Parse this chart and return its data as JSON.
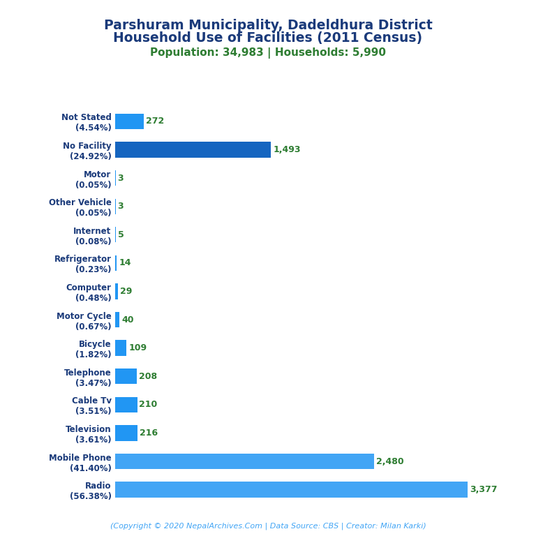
{
  "title_line1": "Parshuram Municipality, Dadeldhura District",
  "title_line2": "Household Use of Facilities (2011 Census)",
  "subtitle": "Population: 34,983 | Households: 5,990",
  "title_color": "#1a3a7a",
  "subtitle_color": "#2e7d32",
  "categories": [
    "Not Stated\n(4.54%)",
    "No Facility\n(24.92%)",
    "Motor\n(0.05%)",
    "Other Vehicle\n(0.05%)",
    "Internet\n(0.08%)",
    "Refrigerator\n(0.23%)",
    "Computer\n(0.48%)",
    "Motor Cycle\n(0.67%)",
    "Bicycle\n(1.82%)",
    "Telephone\n(3.47%)",
    "Cable Tv\n(3.51%)",
    "Television\n(3.61%)",
    "Mobile Phone\n(41.40%)",
    "Radio\n(56.38%)"
  ],
  "values": [
    272,
    1493,
    3,
    3,
    5,
    14,
    29,
    40,
    109,
    208,
    210,
    216,
    2480,
    3377
  ],
  "bar_colors": [
    "#2196f3",
    "#1565c0",
    "#2196f3",
    "#2196f3",
    "#2196f3",
    "#2196f3",
    "#2196f3",
    "#2196f3",
    "#2196f3",
    "#2196f3",
    "#2196f3",
    "#2196f3",
    "#42a5f5",
    "#42a5f5"
  ],
  "value_color": "#2e7d32",
  "label_color": "#1a3a7a",
  "footer_text": "(Copyright © 2020 NepalArchives.Com | Data Source: CBS | Creator: Milan Karki)",
  "footer_color": "#42a5f5",
  "background_color": "#ffffff",
  "xlim": [
    0,
    3700
  ]
}
